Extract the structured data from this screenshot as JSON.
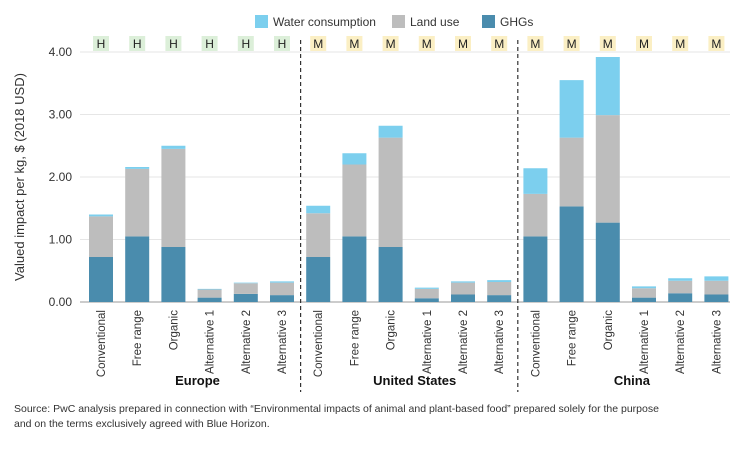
{
  "chart_data": {
    "type": "bar",
    "stacked": true,
    "ylabel": "Valued impact per kg, $ (2018 USD)",
    "ylim": [
      0,
      4.0
    ],
    "yticks": [
      "0.00",
      "1.00",
      "2.00",
      "3.00",
      "4.00"
    ],
    "legend_position": "top",
    "legend": [
      {
        "name": "Water consumption",
        "color": "#7ccfee"
      },
      {
        "name": "Land use",
        "color": "#bdbdbd"
      },
      {
        "name": "GHGs",
        "color": "#4a8cad"
      }
    ],
    "categories": [
      "Conventional",
      "Free range",
      "Organic",
      "Alternative 1",
      "Alternative 2",
      "Alternative 3"
    ],
    "groups": [
      {
        "name": "Europe",
        "ratings": [
          "H",
          "H",
          "H",
          "H",
          "H",
          "H"
        ],
        "ghgs": [
          0.72,
          1.05,
          0.88,
          0.07,
          0.13,
          0.11
        ],
        "land_use": [
          0.65,
          1.08,
          1.57,
          0.13,
          0.17,
          0.2
        ],
        "water": [
          0.03,
          0.03,
          0.05,
          0.01,
          0.01,
          0.02
        ]
      },
      {
        "name": "United States",
        "ratings": [
          "M",
          "M",
          "M",
          "M",
          "M",
          "M"
        ],
        "ghgs": [
          0.72,
          1.05,
          0.88,
          0.06,
          0.12,
          0.11
        ],
        "land_use": [
          0.7,
          1.15,
          1.75,
          0.15,
          0.19,
          0.21
        ],
        "water": [
          0.12,
          0.18,
          0.19,
          0.02,
          0.02,
          0.03
        ]
      },
      {
        "name": "China",
        "ratings": [
          "M",
          "M",
          "M",
          "M",
          "M",
          "M"
        ],
        "ghgs": [
          1.05,
          1.53,
          1.27,
          0.07,
          0.14,
          0.12
        ],
        "land_use": [
          0.68,
          1.1,
          1.72,
          0.15,
          0.2,
          0.22
        ],
        "water": [
          0.41,
          0.92,
          0.93,
          0.03,
          0.04,
          0.07
        ]
      }
    ],
    "rating_colors": {
      "H": "#dcefd9",
      "M": "#fbefc4"
    }
  },
  "source_note": [
    "Source: PwC analysis prepared in connection with “Environmental impacts of animal and plant-based food” prepared solely for the purpose",
    "and on the terms exclusively agreed with Blue Horizon."
  ]
}
